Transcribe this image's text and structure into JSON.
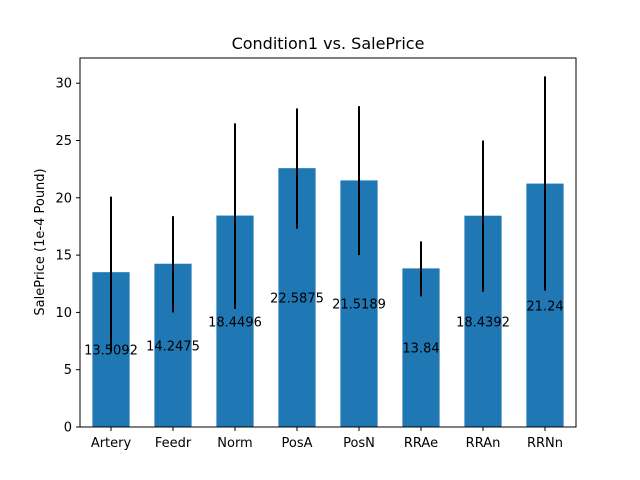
{
  "chart_data": {
    "type": "bar",
    "title": "Condition1 vs. SalePrice",
    "xlabel": "",
    "ylabel": "SalePrice (1e-4 Pound)",
    "categories": [
      "Artery",
      "Feedr",
      "Norm",
      "PosA",
      "PosN",
      "RRAe",
      "RRAn",
      "RRNn"
    ],
    "values": [
      13.5092,
      14.2475,
      18.4496,
      22.5875,
      21.5189,
      13.84,
      18.4392,
      21.24
    ],
    "value_labels": [
      "13.5092",
      "14.2475",
      "18.4496",
      "22.5875",
      "21.5189",
      "13.84",
      "18.4392",
      "21.24"
    ],
    "error_low": [
      6.6,
      10.0,
      10.3,
      17.3,
      15.0,
      11.4,
      11.8,
      11.9
    ],
    "error_high": [
      20.1,
      18.4,
      26.5,
      27.8,
      28.0,
      16.2,
      25.0,
      30.6
    ],
    "ylim": [
      0,
      32.2
    ],
    "yticks": [
      0,
      5,
      10,
      15,
      20,
      25,
      30
    ],
    "bar_color": "#1f77b4",
    "error_color": "#000000",
    "grid": false,
    "legend": "none"
  }
}
